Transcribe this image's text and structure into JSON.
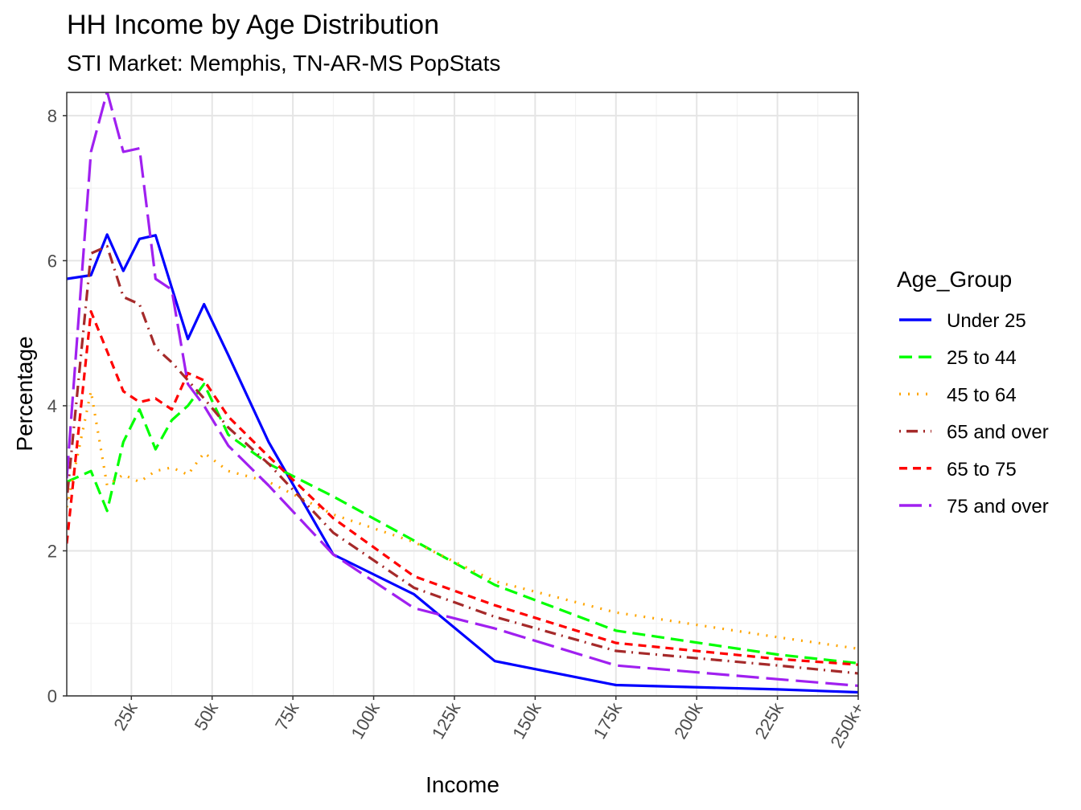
{
  "chart_data": {
    "type": "line",
    "title": "HH Income by Age Distribution",
    "subtitle": "STI Market: Memphis, TN-AR-MS PopStats",
    "xlabel": "Income",
    "ylabel": "Percentage",
    "xlim": [
      5,
      250
    ],
    "ylim": [
      0,
      8.32
    ],
    "x_ticks": [
      25,
      50,
      75,
      100,
      125,
      150,
      175,
      200,
      225,
      250
    ],
    "x_tick_labels": [
      "25k",
      "50k",
      "75k",
      "100k",
      "125k",
      "150k",
      "175k",
      "200k",
      "225k",
      "250k+"
    ],
    "y_ticks": [
      0,
      2,
      4,
      6,
      8
    ],
    "y_tick_labels": [
      "0",
      "2",
      "4",
      "6",
      "8"
    ],
    "grid": true,
    "legend": {
      "title": "Age_Group",
      "position": "right"
    },
    "x": [
      5,
      12.5,
      17.5,
      22.5,
      27.5,
      32.5,
      37.5,
      42.5,
      47.5,
      55,
      67.5,
      87.5,
      112.5,
      137.5,
      175,
      225,
      250
    ],
    "series": [
      {
        "name": "Under 25",
        "color": "#0000FF",
        "dash": "solid",
        "values": [
          5.75,
          5.8,
          6.36,
          5.86,
          6.3,
          6.35,
          5.63,
          4.92,
          5.4,
          4.7,
          3.5,
          1.95,
          1.4,
          0.48,
          0.15,
          0.09,
          0.05
        ]
      },
      {
        "name": "25 to 44",
        "color": "#00FF00",
        "dash": "dashed",
        "values": [
          2.95,
          3.1,
          2.55,
          3.5,
          3.95,
          3.4,
          3.8,
          4.0,
          4.3,
          3.6,
          3.2,
          2.75,
          2.14,
          1.53,
          0.9,
          0.57,
          0.45
        ]
      },
      {
        "name": "45 to 64",
        "color": "#FFA500",
        "dash": "dotted",
        "values": [
          2.6,
          4.2,
          2.9,
          3.05,
          2.95,
          3.1,
          3.15,
          3.05,
          3.35,
          3.1,
          2.95,
          2.5,
          2.12,
          1.58,
          1.15,
          0.81,
          0.65
        ]
      },
      {
        "name": "65 and over",
        "color": "#A52A2A",
        "dash": "dotdash",
        "values": [
          2.7,
          6.1,
          6.2,
          5.5,
          5.4,
          4.8,
          4.6,
          4.35,
          4.1,
          3.7,
          3.2,
          2.25,
          1.49,
          1.09,
          0.62,
          0.42,
          0.31
        ]
      },
      {
        "name": "65 to 75",
        "color": "#FF0000",
        "dash": "dashed",
        "values": [
          2.1,
          5.3,
          4.75,
          4.2,
          4.05,
          4.1,
          3.95,
          4.45,
          4.35,
          3.85,
          3.3,
          2.45,
          1.65,
          1.25,
          0.73,
          0.51,
          0.43
        ]
      },
      {
        "name": "75 and over",
        "color": "#A020F0",
        "dash": "longdash",
        "values": [
          3.0,
          7.5,
          8.33,
          7.5,
          7.55,
          5.75,
          5.6,
          4.3,
          4.0,
          3.45,
          2.9,
          1.95,
          1.21,
          0.93,
          0.42,
          0.23,
          0.14
        ]
      }
    ]
  }
}
